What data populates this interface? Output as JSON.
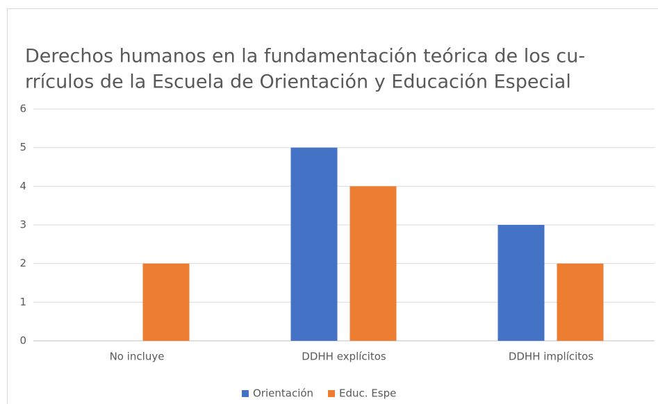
{
  "chart_data": {
    "type": "bar",
    "title": [
      "Derechos humanos en la fundamentación teórica de los cu-",
      "rrículos de la Escuela de Orientación y Educación Especial"
    ],
    "categories": [
      "No incluye",
      "DDHH explícitos",
      "DDHH implícitos"
    ],
    "series": [
      {
        "name": "Orientación",
        "color": "#4472c4",
        "values": [
          0,
          5,
          3
        ]
      },
      {
        "name": "Educ. Espe",
        "color": "#ed7d31",
        "values": [
          2,
          4,
          2
        ]
      }
    ],
    "ylim": [
      0,
      6
    ],
    "yticks": [
      0,
      1,
      2,
      3,
      4,
      5,
      6
    ],
    "grid": true,
    "legend": "bottom"
  }
}
